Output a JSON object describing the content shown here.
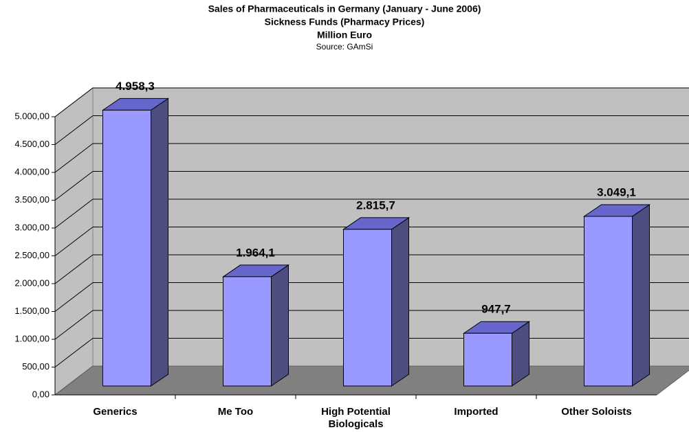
{
  "chart_data": {
    "type": "bar3d",
    "title": "Sales of Pharmaceuticals in Germany (January - June 2006)",
    "subtitle": "Sickness Funds (Pharmacy Prices)",
    "y_axis_label": "Million Euro",
    "source": "Source: GAmSi",
    "categories": [
      "Generics",
      "Me Too",
      "High Potential Biologicals",
      "Imported",
      "Other Soloists"
    ],
    "values": [
      4958.3,
      1964.1,
      2815.7,
      947.7,
      3049.1
    ],
    "value_labels": [
      "4.958,3",
      "1.964,1",
      "2.815,7",
      "947,7",
      "3.049,1"
    ],
    "color": "#9999ff",
    "ylim": [
      0,
      5000
    ],
    "yticks": [
      {
        "value": 0,
        "label": "0,00"
      },
      {
        "value": 500,
        "label": "500,00"
      },
      {
        "value": 1000,
        "label": "1.000,00"
      },
      {
        "value": 1500,
        "label": "1.500,00"
      },
      {
        "value": 2000,
        "label": "2.000,00"
      },
      {
        "value": 2500,
        "label": "2.500,00"
      },
      {
        "value": 3000,
        "label": "3.000,00"
      },
      {
        "value": 3500,
        "label": "3.500,00"
      },
      {
        "value": 4000,
        "label": "4.000,00"
      },
      {
        "value": 4500,
        "label": "4.500,00"
      },
      {
        "value": 5000,
        "label": "5.000,00"
      }
    ],
    "grid": true
  }
}
